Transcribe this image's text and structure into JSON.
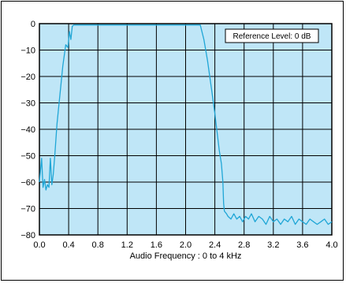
{
  "chart_data": {
    "type": "line",
    "title": "",
    "xlabel": "Audio Frequency : 0 to 4 kHz",
    "ylabel": "",
    "xlim": [
      0.0,
      4.0
    ],
    "ylim": [
      -80,
      0
    ],
    "grid": true,
    "x_ticks": [
      "0.0",
      "0.4",
      "0.8",
      "1.2",
      "1.6",
      "2.0",
      "2.4",
      "2.8",
      "3.2",
      "3.6",
      "4.0"
    ],
    "y_ticks": [
      "0",
      "−10",
      "−20",
      "−30",
      "−40",
      "−50",
      "−60",
      "−70",
      "−80"
    ],
    "annotation": "Reference Level: 0 dB",
    "colors": {
      "plot_background": "#bfe6f7",
      "line": "#1fa6d6",
      "grid": "#000000"
    },
    "series": [
      {
        "x": [
          0.0,
          0.03,
          0.05,
          0.07,
          0.09,
          0.11,
          0.13,
          0.15,
          0.17,
          0.19,
          0.21,
          0.24,
          0.28,
          0.32,
          0.36,
          0.39,
          0.41,
          0.43,
          0.45,
          0.47,
          0.5,
          0.8,
          1.2,
          1.6,
          2.0,
          2.1,
          2.15,
          2.2,
          2.25,
          2.3,
          2.35,
          2.4,
          2.43,
          2.46,
          2.49,
          2.51,
          2.52,
          2.53,
          2.56,
          2.58,
          2.62,
          2.66,
          2.7,
          2.74,
          2.78,
          2.82,
          2.86,
          2.9,
          2.95,
          3.0,
          3.05,
          3.1,
          3.15,
          3.2,
          3.25,
          3.3,
          3.35,
          3.4,
          3.45,
          3.5,
          3.55,
          3.6,
          3.65,
          3.7,
          3.75,
          3.8,
          3.85,
          3.9,
          3.95,
          4.0
        ],
        "y": [
          -60,
          -51,
          -62,
          -59,
          -63,
          -61,
          -62,
          -51,
          -61,
          -57,
          -50,
          -38,
          -27,
          -16,
          -8,
          -9,
          -3,
          -6,
          -1,
          -0.5,
          -0.5,
          -0.5,
          -0.5,
          -0.5,
          -0.5,
          -0.5,
          -0.5,
          -0.5,
          -6,
          -14,
          -24,
          -34,
          -41,
          -48,
          -53,
          -60,
          -68,
          -71,
          -72,
          -73,
          -74,
          -72,
          -74,
          -73,
          -75,
          -73,
          -74,
          -72,
          -75,
          -73,
          -74,
          -76,
          -73,
          -75,
          -74,
          -76,
          -74,
          -75,
          -73,
          -76,
          -74,
          -75,
          -76,
          -74,
          -75,
          -76,
          -75,
          -74,
          -76,
          -75
        ]
      }
    ]
  }
}
